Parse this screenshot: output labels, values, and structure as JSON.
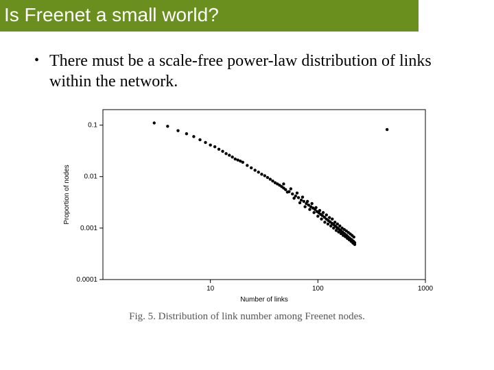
{
  "slide": {
    "title": "Is Freenet a small world?",
    "bullet": "There must be a scale-free power-law distribution of links within the network."
  },
  "chart": {
    "type": "scatter",
    "caption": "Fig. 5. Distribution of link number among Freenet nodes.",
    "x_label": "Number of links",
    "y_label": "Proportion of nodes",
    "x_scale": "log",
    "y_scale": "log",
    "x_range": [
      1,
      1000
    ],
    "y_range": [
      0.0001,
      0.2
    ],
    "x_ticks": [
      10,
      100,
      1000
    ],
    "y_ticks": [
      0.0001,
      0.001,
      0.01,
      0.1
    ],
    "y_tick_labels": [
      "0.0001",
      "0.001",
      "0.01",
      "0.1"
    ],
    "marker": {
      "shape": "circle",
      "size": 2.2,
      "color": "#000000"
    },
    "axis_color": "#000000",
    "background_color": "#ffffff",
    "axis_fontsize": 10,
    "tick_fontsize": 10,
    "points": [
      [
        3,
        0.11
      ],
      [
        4,
        0.095
      ],
      [
        5,
        0.078
      ],
      [
        6,
        0.068
      ],
      [
        7,
        0.06
      ],
      [
        8,
        0.052
      ],
      [
        9,
        0.046
      ],
      [
        10,
        0.041
      ],
      [
        11,
        0.038
      ],
      [
        12,
        0.034
      ],
      [
        13,
        0.031
      ],
      [
        14,
        0.028
      ],
      [
        15,
        0.026
      ],
      [
        16,
        0.024
      ],
      [
        17,
        0.022
      ],
      [
        18,
        0.021
      ],
      [
        19,
        0.02
      ],
      [
        20,
        0.019
      ],
      [
        22,
        0.0165
      ],
      [
        24,
        0.0148
      ],
      [
        26,
        0.0133
      ],
      [
        28,
        0.0122
      ],
      [
        30,
        0.0111
      ],
      [
        32,
        0.0104
      ],
      [
        34,
        0.0096
      ],
      [
        36,
        0.0089
      ],
      [
        38,
        0.0082
      ],
      [
        40,
        0.0076
      ],
      [
        42,
        0.0072
      ],
      [
        44,
        0.0068
      ],
      [
        46,
        0.0064
      ],
      [
        48,
        0.006
      ],
      [
        50,
        0.0056
      ],
      [
        54,
        0.0051
      ],
      [
        58,
        0.0046
      ],
      [
        62,
        0.0042
      ],
      [
        66,
        0.0039
      ],
      [
        70,
        0.0035
      ],
      [
        74,
        0.0033
      ],
      [
        78,
        0.003
      ],
      [
        82,
        0.0028
      ],
      [
        86,
        0.0026
      ],
      [
        90,
        0.00245
      ],
      [
        94,
        0.0023
      ],
      [
        98,
        0.0021
      ],
      [
        102,
        0.00198
      ],
      [
        106,
        0.00185
      ],
      [
        110,
        0.00175
      ],
      [
        115,
        0.00162
      ],
      [
        120,
        0.0015
      ],
      [
        125,
        0.0014
      ],
      [
        130,
        0.00132
      ],
      [
        135,
        0.00124
      ],
      [
        140,
        0.00117
      ],
      [
        145,
        0.0011
      ],
      [
        150,
        0.00103
      ],
      [
        155,
        0.00098
      ],
      [
        160,
        0.00092
      ],
      [
        165,
        0.00088
      ],
      [
        170,
        0.00083
      ],
      [
        175,
        0.00079
      ],
      [
        180,
        0.00075
      ],
      [
        185,
        0.00072
      ],
      [
        190,
        0.00068
      ],
      [
        195,
        0.00065
      ],
      [
        200,
        0.00062
      ],
      [
        205,
        0.0006
      ],
      [
        210,
        0.00057
      ],
      [
        215,
        0.00055
      ],
      [
        220,
        0.00052
      ],
      [
        48,
        0.0072
      ],
      [
        52,
        0.005
      ],
      [
        56,
        0.0058
      ],
      [
        60,
        0.0038
      ],
      [
        64,
        0.0048
      ],
      [
        68,
        0.0031
      ],
      [
        72,
        0.004
      ],
      [
        76,
        0.0026
      ],
      [
        80,
        0.0033
      ],
      [
        84,
        0.0023
      ],
      [
        88,
        0.003
      ],
      [
        92,
        0.002
      ],
      [
        96,
        0.0025
      ],
      [
        100,
        0.0017
      ],
      [
        104,
        0.0022
      ],
      [
        108,
        0.0015
      ],
      [
        112,
        0.002
      ],
      [
        116,
        0.0013
      ],
      [
        120,
        0.0018
      ],
      [
        124,
        0.0012
      ],
      [
        128,
        0.0016
      ],
      [
        132,
        0.0011
      ],
      [
        136,
        0.0015
      ],
      [
        140,
        0.001
      ],
      [
        144,
        0.0013
      ],
      [
        148,
        0.0009
      ],
      [
        152,
        0.0012
      ],
      [
        156,
        0.00084
      ],
      [
        160,
        0.0011
      ],
      [
        164,
        0.00078
      ],
      [
        168,
        0.001
      ],
      [
        172,
        0.00072
      ],
      [
        176,
        0.00094
      ],
      [
        180,
        0.00068
      ],
      [
        184,
        0.00088
      ],
      [
        188,
        0.00063
      ],
      [
        192,
        0.00082
      ],
      [
        196,
        0.00059
      ],
      [
        200,
        0.00077
      ],
      [
        204,
        0.00055
      ],
      [
        208,
        0.00072
      ],
      [
        212,
        0.00051
      ],
      [
        216,
        0.00067
      ],
      [
        220,
        0.00048
      ],
      [
        440,
        0.082
      ]
    ]
  }
}
